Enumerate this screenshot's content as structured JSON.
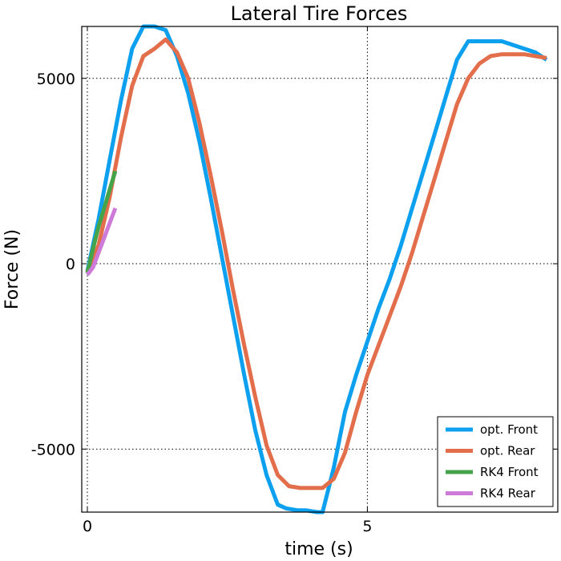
{
  "chart_data": {
    "type": "line",
    "title": "Lateral Tire Forces",
    "xlabel": "time (s)",
    "ylabel": "Force (N)",
    "xlim": [
      -0.1,
      8.4
    ],
    "ylim": [
      -6700,
      6400
    ],
    "xticks": [
      0,
      5
    ],
    "xtick_labels": [
      "0",
      "5"
    ],
    "yticks": [
      -5000,
      0,
      5000
    ],
    "ytick_labels": [
      "-5000",
      "0",
      "5000"
    ],
    "grid": true,
    "legend_position": "lower-right",
    "series": [
      {
        "name": "opt. Front",
        "color": "#0DA0EE",
        "x": [
          0,
          0.2,
          0.4,
          0.6,
          0.8,
          1.0,
          1.05,
          1.2,
          1.4,
          1.6,
          1.8,
          2.0,
          2.2,
          2.4,
          2.6,
          2.8,
          3.0,
          3.2,
          3.4,
          3.55,
          3.75,
          3.9,
          4.1,
          4.2,
          4.4,
          4.6,
          4.8,
          5.0,
          5.2,
          5.4,
          5.6,
          5.8,
          6.0,
          6.2,
          6.4,
          6.6,
          6.8,
          7.0,
          7.2,
          7.4,
          7.6,
          7.8,
          8.0,
          8.2
        ],
        "y": [
          -200,
          1200,
          2800,
          4400,
          5800,
          6400,
          6400,
          6400,
          6300,
          5600,
          4600,
          3300,
          1800,
          200,
          -1400,
          -3000,
          -4500,
          -5700,
          -6500,
          -6600,
          -6650,
          -6650,
          -6700,
          -6700,
          -5500,
          -4000,
          -3000,
          -2100,
          -1200,
          -400,
          500,
          1500,
          2500,
          3500,
          4500,
          5500,
          6000,
          6000,
          6000,
          6000,
          5900,
          5800,
          5700,
          5500
        ]
      },
      {
        "name": "opt. Rear",
        "color": "#E26E4C",
        "x": [
          0,
          0.2,
          0.4,
          0.6,
          0.8,
          1.0,
          1.2,
          1.4,
          1.6,
          1.8,
          2.0,
          2.2,
          2.4,
          2.6,
          2.8,
          3.0,
          3.2,
          3.4,
          3.6,
          3.8,
          4.0,
          4.2,
          4.4,
          4.6,
          4.8,
          5.0,
          5.2,
          5.4,
          5.6,
          5.8,
          6.0,
          6.2,
          6.4,
          6.6,
          6.8,
          7.0,
          7.2,
          7.4,
          7.6,
          7.8,
          8.0,
          8.2
        ],
        "y": [
          -200,
          500,
          1800,
          3400,
          4800,
          5600,
          5800,
          6050,
          5700,
          5000,
          3800,
          2400,
          900,
          -700,
          -2200,
          -3600,
          -4900,
          -5700,
          -6000,
          -6050,
          -6050,
          -6050,
          -5800,
          -5100,
          -4000,
          -3000,
          -2200,
          -1400,
          -600,
          300,
          1300,
          2300,
          3300,
          4300,
          5000,
          5400,
          5600,
          5650,
          5650,
          5650,
          5600,
          5550
        ]
      },
      {
        "name": "RK4 Front",
        "color": "#45A44A",
        "x": [
          0,
          0.1,
          0.2,
          0.3,
          0.4,
          0.5
        ],
        "y": [
          -250,
          400,
          1000,
          1500,
          2000,
          2500
        ]
      },
      {
        "name": "RK4 Rear",
        "color": "#CE7AD8",
        "x": [
          0,
          0.1,
          0.2,
          0.3,
          0.4,
          0.5
        ],
        "y": [
          -300,
          -100,
          300,
          700,
          1100,
          1500
        ]
      }
    ]
  }
}
